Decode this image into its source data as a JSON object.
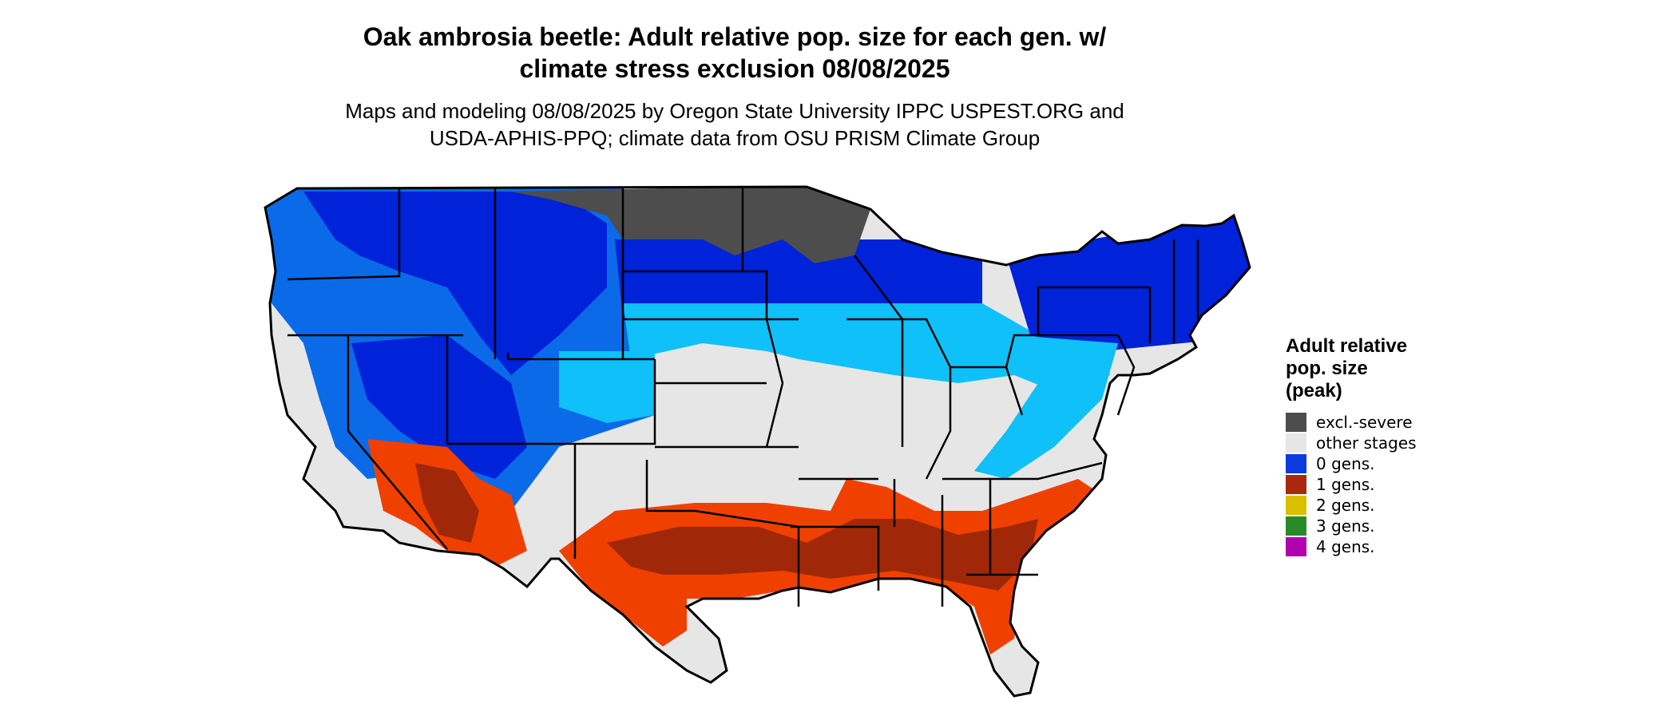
{
  "title_line1": "Oak ambrosia beetle: Adult relative pop. size for each gen. w/",
  "title_line2": "climate stress exclusion 08/08/2025",
  "subtitle_line1": "Maps and modeling 08/08/2025 by Oregon State University IPPC USPEST.ORG and",
  "subtitle_line2": "USDA-APHIS-PPQ; climate data from OSU PRISM Climate Group",
  "legend": {
    "title_line1": "Adult relative",
    "title_line2": "pop. size",
    "title_line3": "(peak)",
    "items": [
      {
        "label": "excl.-severe",
        "color": "#4d4d4d"
      },
      {
        "label": "other stages",
        "color": "#e6e6e6"
      },
      {
        "label": "0 gens.",
        "color": "#0a3be0"
      },
      {
        "label": "1 gens.",
        "color": "#a82810"
      },
      {
        "label": "2 gens.",
        "color": "#d8c000"
      },
      {
        "label": "3 gens.",
        "color": "#2a8a2a"
      },
      {
        "label": "4 gens.",
        "color": "#b000b0"
      }
    ]
  },
  "colors": {
    "other": "#e6e6e6",
    "excluded": "#4d4d4d",
    "zero_dark": "#0022d8",
    "zero_mid": "#0a6ae8",
    "zero_light": "#10c0f8",
    "one_dark": "#a02808",
    "one_light": "#f04000"
  }
}
